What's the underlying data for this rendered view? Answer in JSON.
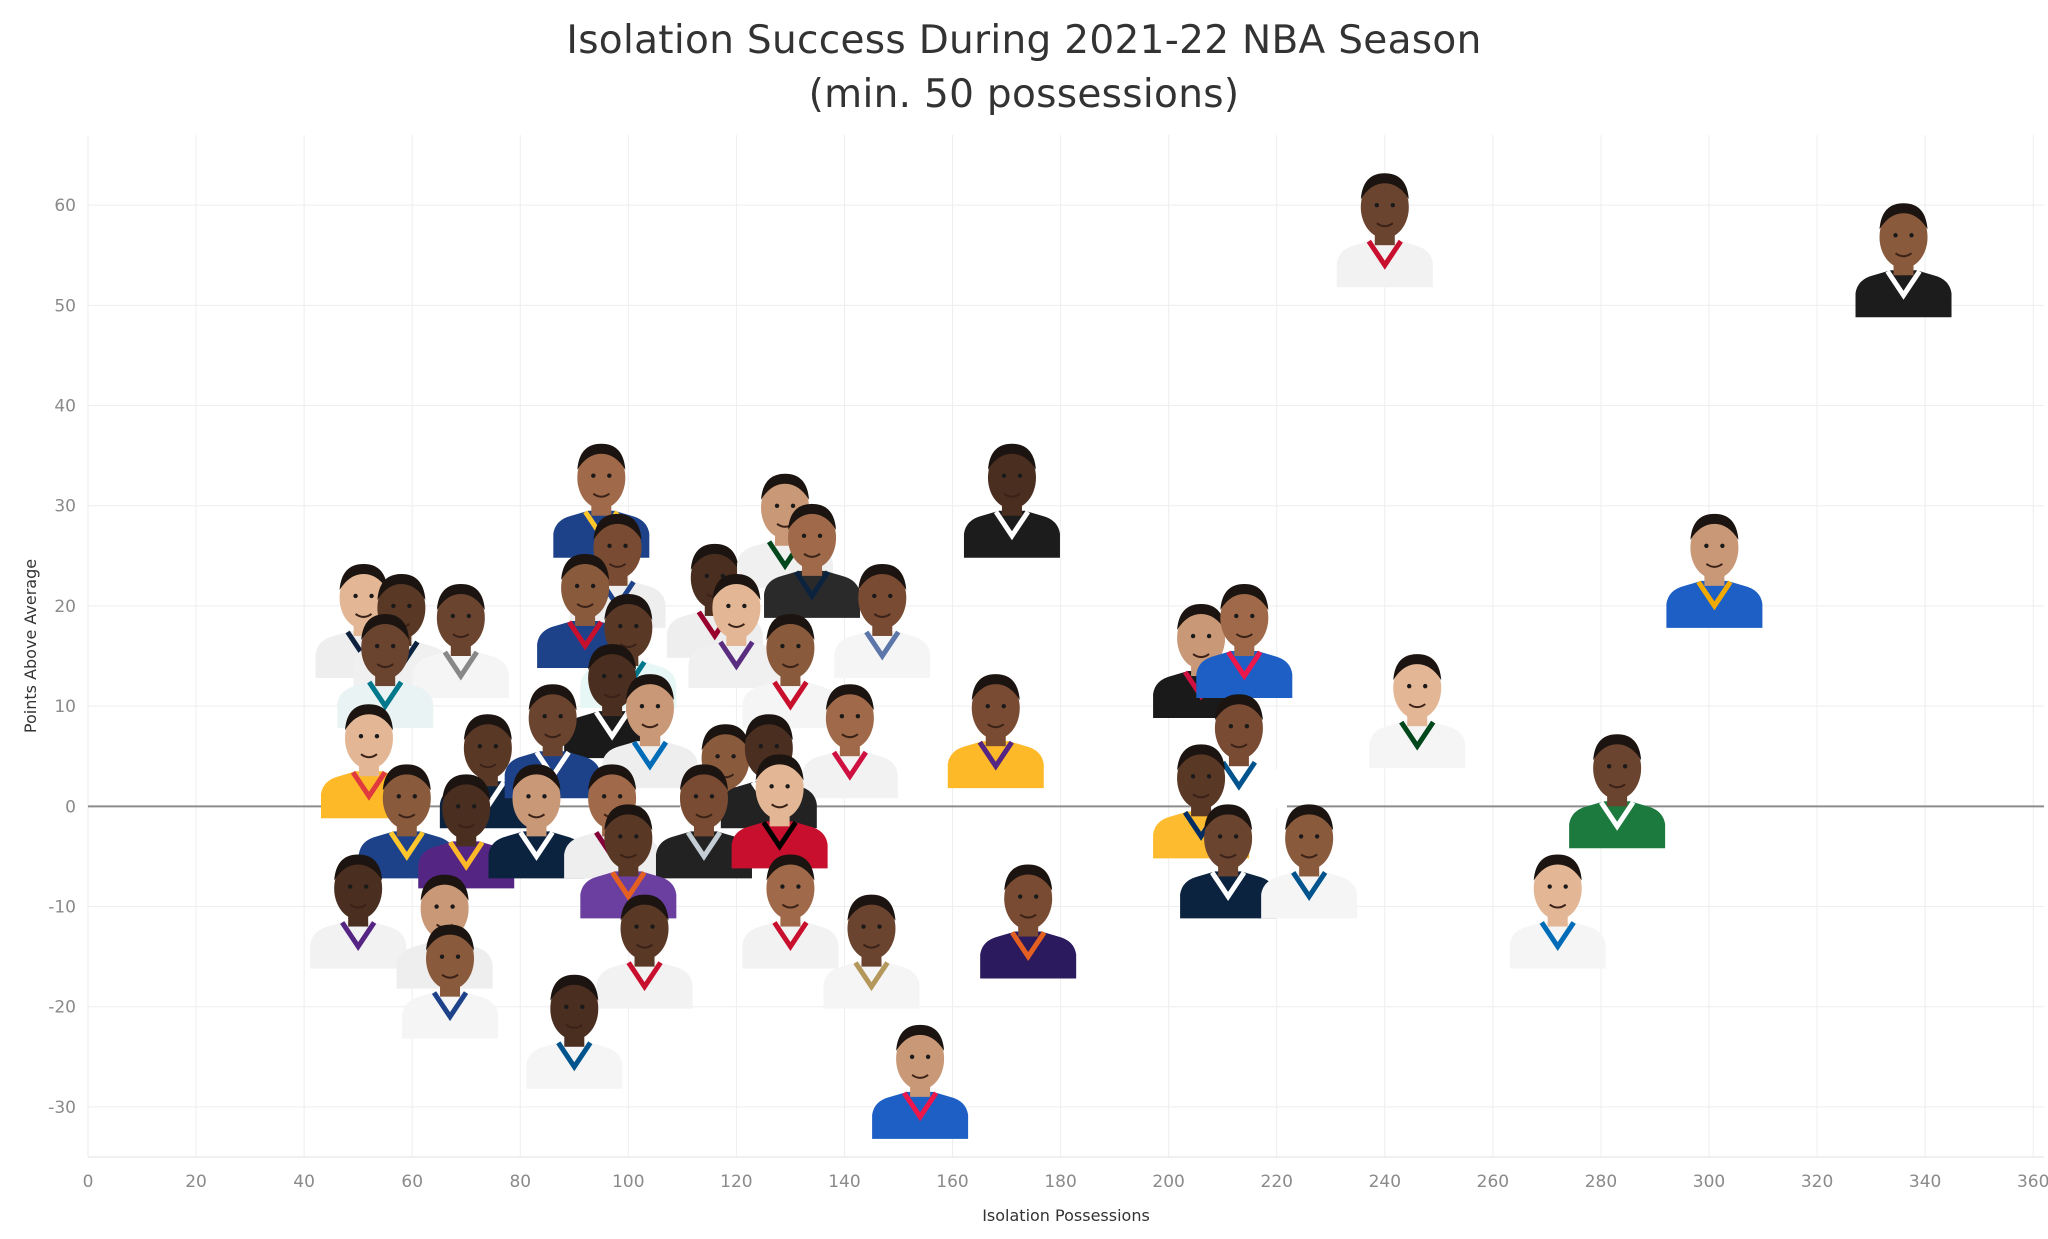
{
  "chart_data": {
    "type": "scatter",
    "title": "Isolation Success During 2021-22 NBA Season",
    "subtitle": "(min. 50 possessions)",
    "xlabel": "Isolation Possessions",
    "ylabel": "Points Above Average",
    "xlim": [
      0,
      362
    ],
    "ylim": [
      -35,
      67
    ],
    "x_ticks": [
      0,
      20,
      40,
      60,
      80,
      100,
      120,
      140,
      160,
      180,
      200,
      220,
      240,
      260,
      280,
      300,
      320,
      340,
      360
    ],
    "y_ticks": [
      -30,
      -20,
      -10,
      0,
      10,
      20,
      30,
      40,
      50,
      60
    ],
    "grid": true,
    "zero_line": true,
    "marker": "player-headshot",
    "points": [
      {
        "x": 240,
        "y": 57,
        "jersey": "#f2f2f2",
        "trim": "#c8102e"
      },
      {
        "x": 336,
        "y": 54,
        "jersey": "#1c1c1c",
        "trim": "#ffffff"
      },
      {
        "x": 171,
        "y": 30,
        "jersey": "#1c1c1c",
        "trim": "#ffffff"
      },
      {
        "x": 301,
        "y": 23,
        "jersey": "#1d5fc4",
        "trim": "#f2a900"
      },
      {
        "x": 95,
        "y": 30,
        "jersey": "#1d428a",
        "trim": "#ffc72c"
      },
      {
        "x": 98,
        "y": 23,
        "jersey": "#eeeeee",
        "trim": "#1d428a"
      },
      {
        "x": 51,
        "y": 18,
        "jersey": "#eeeeee",
        "trim": "#0e2240"
      },
      {
        "x": 58,
        "y": 17,
        "jersey": "#f0f0f0",
        "trim": "#0c2340"
      },
      {
        "x": 69,
        "y": 16,
        "jersey": "#f5f5f5",
        "trim": "#888888"
      },
      {
        "x": 92,
        "y": 19,
        "jersey": "#1d428a",
        "trim": "#c8102e"
      },
      {
        "x": 116,
        "y": 20,
        "jersey": "#eeeeee",
        "trim": "#98002e"
      },
      {
        "x": 129,
        "y": 27,
        "jersey": "#f0f0f0",
        "trim": "#00471b"
      },
      {
        "x": 134,
        "y": 24,
        "jersey": "#2a2a2a",
        "trim": "#0c2340"
      },
      {
        "x": 147,
        "y": 18,
        "jersey": "#f5f5f5",
        "trim": "#5d76a9"
      },
      {
        "x": 120,
        "y": 17,
        "jersey": "#f0f0f0",
        "trim": "#5a2d81"
      },
      {
        "x": 100,
        "y": 15,
        "jersey": "#e7f7f5",
        "trim": "#00778b"
      },
      {
        "x": 55,
        "y": 13,
        "jersey": "#eaf3f3",
        "trim": "#00788c"
      },
      {
        "x": 130,
        "y": 13,
        "jersey": "#f5f5f5",
        "trim": "#c8102e"
      },
      {
        "x": 97,
        "y": 10,
        "jersey": "#1a1a1a",
        "trim": "#ffffff"
      },
      {
        "x": 104,
        "y": 7,
        "jersey": "#eeeeee",
        "trim": "#006bb6"
      },
      {
        "x": 141,
        "y": 6,
        "jersey": "#f2f2f2",
        "trim": "#ce1141"
      },
      {
        "x": 168,
        "y": 7,
        "jersey": "#fdb927",
        "trim": "#552583"
      },
      {
        "x": 52,
        "y": 4,
        "jersey": "#fdb927",
        "trim": "#e03a3e"
      },
      {
        "x": 74,
        "y": 3,
        "jersey": "#0c2340",
        "trim": "#ffffff"
      },
      {
        "x": 86,
        "y": 6,
        "jersey": "#1d428a",
        "trim": "#ffffff"
      },
      {
        "x": 118,
        "y": 2,
        "jersey": "#ffffff",
        "trim": "#000000"
      },
      {
        "x": 126,
        "y": 3,
        "jersey": "#222222",
        "trim": "#ffffff"
      },
      {
        "x": 206,
        "y": 14,
        "jersey": "#1a1a1a",
        "trim": "#ce1141"
      },
      {
        "x": 214,
        "y": 16,
        "jersey": "#1d5fc4",
        "trim": "#ed174c"
      },
      {
        "x": 213,
        "y": 5,
        "jersey": "#ffffff",
        "trim": "#00538c"
      },
      {
        "x": 246,
        "y": 9,
        "jersey": "#f5f5f5",
        "trim": "#00471b"
      },
      {
        "x": 206,
        "y": 0,
        "jersey": "#fdbb30",
        "trim": "#002d62"
      },
      {
        "x": 283,
        "y": 1,
        "jersey": "#1d7a3f",
        "trim": "#ffffff"
      },
      {
        "x": 59,
        "y": -2,
        "jersey": "#1d428a",
        "trim": "#ffc72c"
      },
      {
        "x": 70,
        "y": -3,
        "jersey": "#552583",
        "trim": "#fdb927"
      },
      {
        "x": 83,
        "y": -2,
        "jersey": "#0c2340",
        "trim": "#ffffff"
      },
      {
        "x": 97,
        "y": -2,
        "jersey": "#eeeeee",
        "trim": "#860038"
      },
      {
        "x": 114,
        "y": -2,
        "jersey": "#222222",
        "trim": "#c4ced4"
      },
      {
        "x": 128,
        "y": -1,
        "jersey": "#c8102e",
        "trim": "#000000"
      },
      {
        "x": 100,
        "y": -6,
        "jersey": "#6a3fa0",
        "trim": "#e56020"
      },
      {
        "x": 211,
        "y": -6,
        "jersey": "#0c2340",
        "trim": "#ffffff"
      },
      {
        "x": 226,
        "y": -6,
        "jersey": "#f5f5f5",
        "trim": "#00538c"
      },
      {
        "x": 50,
        "y": -11,
        "jersey": "#f2f2f2",
        "trim": "#552583"
      },
      {
        "x": 66,
        "y": -13,
        "jersey": "#eeeeee",
        "trim": "#c8102e"
      },
      {
        "x": 130,
        "y": -11,
        "jersey": "#f2f2f2",
        "trim": "#c8102e"
      },
      {
        "x": 174,
        "y": -12,
        "jersey": "#2c1a5e",
        "trim": "#e56020"
      },
      {
        "x": 272,
        "y": -11,
        "jersey": "#f5f5f5",
        "trim": "#006bb6"
      },
      {
        "x": 103,
        "y": -15,
        "jersey": "#f2f2f2",
        "trim": "#c8102e"
      },
      {
        "x": 145,
        "y": -15,
        "jersey": "#f5f5f5",
        "trim": "#b4975a"
      },
      {
        "x": 67,
        "y": -18,
        "jersey": "#f5f5f5",
        "trim": "#1d428a"
      },
      {
        "x": 90,
        "y": -23,
        "jersey": "#f5f5f5",
        "trim": "#00538c"
      },
      {
        "x": 154,
        "y": -28,
        "jersey": "#1d5fc4",
        "trim": "#ed174c"
      }
    ]
  }
}
